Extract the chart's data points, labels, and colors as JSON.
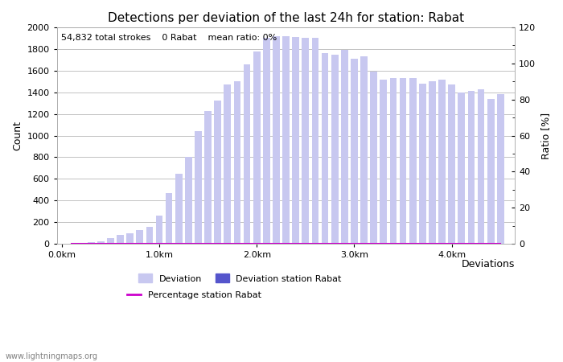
{
  "title": "Detections per deviation of the last 24h for station: Rabat",
  "subtitle": "54,832 total strokes    0 Rabat    mean ratio: 0%",
  "ylabel_left": "Count",
  "ylabel_right": "Ratio [%]",
  "xlabel_right": "Deviations",
  "ylim_left": [
    0,
    2000
  ],
  "ylim_right": [
    0,
    120
  ],
  "yticks_left": [
    0,
    200,
    400,
    600,
    800,
    1000,
    1200,
    1400,
    1600,
    1800,
    2000
  ],
  "yticks_right": [
    0,
    20,
    40,
    60,
    80,
    100,
    120
  ],
  "bar_width": 0.072,
  "bar_color": "#c8c8f0",
  "bar_color_station": "#5555cc",
  "line_color": "#cc00cc",
  "background_color": "#ffffff",
  "grid_color": "#aaaaaa",
  "watermark": "www.lightningmaps.org",
  "xtick_labels": [
    "0.0km",
    "1.0km",
    "2.0km",
    "3.0km",
    "4.0km"
  ],
  "xtick_positions": [
    0.0,
    1.0,
    2.0,
    3.0,
    4.0
  ],
  "bar_positions": [
    0.1,
    0.2,
    0.3,
    0.4,
    0.5,
    0.6,
    0.7,
    0.8,
    0.9,
    1.0,
    1.1,
    1.2,
    1.3,
    1.4,
    1.5,
    1.6,
    1.7,
    1.8,
    1.9,
    2.0,
    2.1,
    2.2,
    2.3,
    2.4,
    2.5,
    2.6,
    2.7,
    2.8,
    2.9,
    3.0,
    3.1,
    3.2,
    3.3,
    3.4,
    3.5,
    3.6,
    3.7,
    3.8,
    3.9,
    4.0,
    4.1,
    4.2,
    4.3,
    4.4,
    4.5
  ],
  "bar_heights": [
    5,
    10,
    15,
    20,
    50,
    80,
    100,
    130,
    155,
    260,
    470,
    650,
    800,
    1040,
    1230,
    1320,
    1470,
    1500,
    1660,
    1780,
    1900,
    1920,
    1920,
    1910,
    1900,
    1900,
    1760,
    1750,
    1790,
    1710,
    1730,
    1590,
    1520,
    1530,
    1530,
    1530,
    1480,
    1500,
    1520,
    1470,
    1400,
    1410,
    1430,
    1340,
    1380
  ],
  "station_bar_heights": [
    0,
    0,
    0,
    0,
    0,
    0,
    0,
    0,
    0,
    0,
    0,
    0,
    0,
    0,
    0,
    0,
    0,
    0,
    0,
    0,
    0,
    0,
    0,
    0,
    0,
    0,
    0,
    0,
    0,
    0,
    0,
    0,
    0,
    0,
    0,
    0,
    0,
    0,
    0,
    0,
    0,
    0,
    0,
    0,
    0
  ],
  "percentage_values": [
    0,
    0,
    0,
    0,
    0,
    0,
    0,
    0,
    0,
    0,
    0,
    0,
    0,
    0,
    0,
    0,
    0,
    0,
    0,
    0,
    0,
    0,
    0,
    0,
    0,
    0,
    0,
    0,
    0,
    0,
    0,
    0,
    0,
    0,
    0,
    0,
    0,
    0,
    0,
    0,
    0,
    0,
    0,
    0,
    0
  ],
  "legend_labels": [
    "Deviation",
    "Deviation station Rabat",
    "Percentage station Rabat"
  ],
  "legend_colors": [
    "#c8c8f0",
    "#5555cc",
    "#cc00cc"
  ],
  "title_fontsize": 11,
  "axis_fontsize": 9,
  "tick_fontsize": 8,
  "subtitle_fontsize": 8
}
